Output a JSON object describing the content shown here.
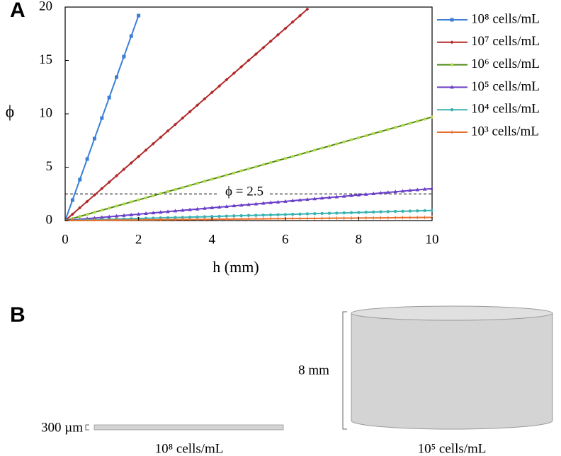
{
  "panel_a_label": "A",
  "chart_data": {
    "type": "line",
    "x_label": "h (mm)",
    "y_label": "ϕ",
    "x": [
      0,
      0.2,
      0.4,
      0.6,
      0.8,
      1,
      1.2,
      1.4,
      1.6,
      1.8,
      2,
      2.2,
      2.4,
      2.6,
      2.8,
      3,
      3.2,
      3.4,
      3.6,
      3.8,
      4,
      4.2,
      4.4,
      4.6,
      4.8,
      5,
      5.2,
      5.4,
      5.6,
      5.8,
      6,
      6.2,
      6.4,
      6.6,
      6.8,
      7,
      7.2,
      7.4,
      7.6,
      7.8,
      8,
      8.2,
      8.4,
      8.6,
      8.8,
      9,
      9.2,
      9.4,
      9.6,
      9.8,
      10
    ],
    "series": [
      {
        "name": "10⁸ cells/mL",
        "color": "#3a7fd5",
        "marker": "square",
        "values": [
          0,
          1.92,
          3.84,
          5.76,
          7.68,
          9.6,
          11.52,
          13.44,
          15.36,
          17.28,
          19.2,
          null,
          null,
          null,
          null,
          null,
          null,
          null,
          null,
          null,
          null,
          null,
          null,
          null,
          null,
          null,
          null,
          null,
          null,
          null,
          null,
          null,
          null,
          null,
          null,
          null,
          null,
          null,
          null,
          null,
          null,
          null,
          null,
          null,
          null,
          null,
          null,
          null,
          null,
          null,
          null
        ]
      },
      {
        "name": "10⁷ cells/mL",
        "color": "#b22a2a",
        "marker": "diamond",
        "values": [
          0,
          0.6,
          1.2,
          1.8,
          2.4,
          3,
          3.6,
          4.2,
          4.8,
          5.4,
          6,
          6.6,
          7.2,
          7.8,
          8.4,
          9,
          9.6,
          10.2,
          10.8,
          11.4,
          12,
          12.6,
          13.2,
          13.8,
          14.4,
          15,
          15.6,
          16.2,
          16.8,
          17.4,
          18,
          18.6,
          19.2,
          19.8,
          null,
          null,
          null,
          null,
          null,
          null,
          null,
          null,
          null,
          null,
          null,
          null,
          null,
          null,
          null,
          null,
          null
        ]
      },
      {
        "name": "10⁶ cells/mL",
        "color": "#4f8a16",
        "marker": "circle",
        "values": [
          0,
          0.19,
          0.39,
          0.58,
          0.78,
          0.97,
          1.16,
          1.36,
          1.55,
          1.75,
          1.94,
          2.13,
          2.33,
          2.52,
          2.72,
          2.91,
          3.1,
          3.3,
          3.49,
          3.69,
          3.88,
          4.07,
          4.27,
          4.46,
          4.66,
          4.85,
          5.04,
          5.24,
          5.43,
          5.63,
          5.82,
          6.01,
          6.21,
          6.4,
          6.6,
          6.79,
          6.98,
          7.18,
          7.37,
          7.57,
          7.76,
          7.95,
          8.15,
          8.34,
          8.54,
          8.73,
          8.92,
          9.12,
          9.31,
          9.51,
          9.7
        ]
      },
      {
        "name": "10⁵ cells/mL",
        "color": "#6a3fc8",
        "marker": "triangle",
        "values": [
          0,
          0.06,
          0.12,
          0.18,
          0.24,
          0.3,
          0.36,
          0.42,
          0.48,
          0.54,
          0.6,
          0.66,
          0.72,
          0.78,
          0.84,
          0.9,
          0.96,
          1.02,
          1.08,
          1.14,
          1.2,
          1.26,
          1.32,
          1.38,
          1.44,
          1.5,
          1.56,
          1.62,
          1.68,
          1.74,
          1.8,
          1.86,
          1.92,
          1.98,
          2.04,
          2.1,
          2.16,
          2.22,
          2.28,
          2.34,
          2.4,
          2.46,
          2.52,
          2.58,
          2.64,
          2.7,
          2.76,
          2.82,
          2.88,
          2.94,
          3
        ]
      },
      {
        "name": "10⁴ cells/mL",
        "color": "#3bb3b3",
        "marker": "circle",
        "values": [
          0,
          0.02,
          0.04,
          0.06,
          0.08,
          0.1,
          0.11,
          0.13,
          0.15,
          0.17,
          0.19,
          0.21,
          0.23,
          0.25,
          0.27,
          0.29,
          0.3,
          0.32,
          0.34,
          0.36,
          0.38,
          0.4,
          0.42,
          0.44,
          0.46,
          0.48,
          0.49,
          0.51,
          0.53,
          0.55,
          0.57,
          0.59,
          0.61,
          0.63,
          0.65,
          0.67,
          0.68,
          0.7,
          0.72,
          0.74,
          0.76,
          0.78,
          0.8,
          0.82,
          0.84,
          0.86,
          0.87,
          0.89,
          0.91,
          0.93,
          0.95
        ]
      },
      {
        "name": "10³ cells/mL",
        "color": "#e86e2a",
        "marker": "plus",
        "values": [
          0,
          0.01,
          0.01,
          0.02,
          0.02,
          0.03,
          0.04,
          0.04,
          0.05,
          0.05,
          0.06,
          0.07,
          0.07,
          0.08,
          0.08,
          0.09,
          0.1,
          0.1,
          0.11,
          0.11,
          0.12,
          0.13,
          0.13,
          0.14,
          0.14,
          0.15,
          0.16,
          0.16,
          0.17,
          0.17,
          0.18,
          0.19,
          0.19,
          0.2,
          0.2,
          0.21,
          0.22,
          0.22,
          0.23,
          0.23,
          0.24,
          0.25,
          0.25,
          0.26,
          0.26,
          0.27,
          0.28,
          0.28,
          0.29,
          0.29,
          0.3
        ]
      }
    ],
    "xlim": [
      0,
      10
    ],
    "xticks": [
      0,
      2,
      4,
      6,
      8,
      10
    ],
    "ylim": [
      0,
      20
    ],
    "yticks": [
      0,
      5,
      10,
      15,
      20
    ],
    "reference_line": {
      "value": 2.5,
      "label": "ϕ = 2.5"
    },
    "legend": "right"
  },
  "panel_b": {
    "label": "B",
    "thin_layer": {
      "thickness": "300 µm",
      "concentration": "10⁸ cells/mL"
    },
    "cylinder": {
      "height": "8 mm",
      "concentration": "10⁵ cells/mL"
    }
  }
}
